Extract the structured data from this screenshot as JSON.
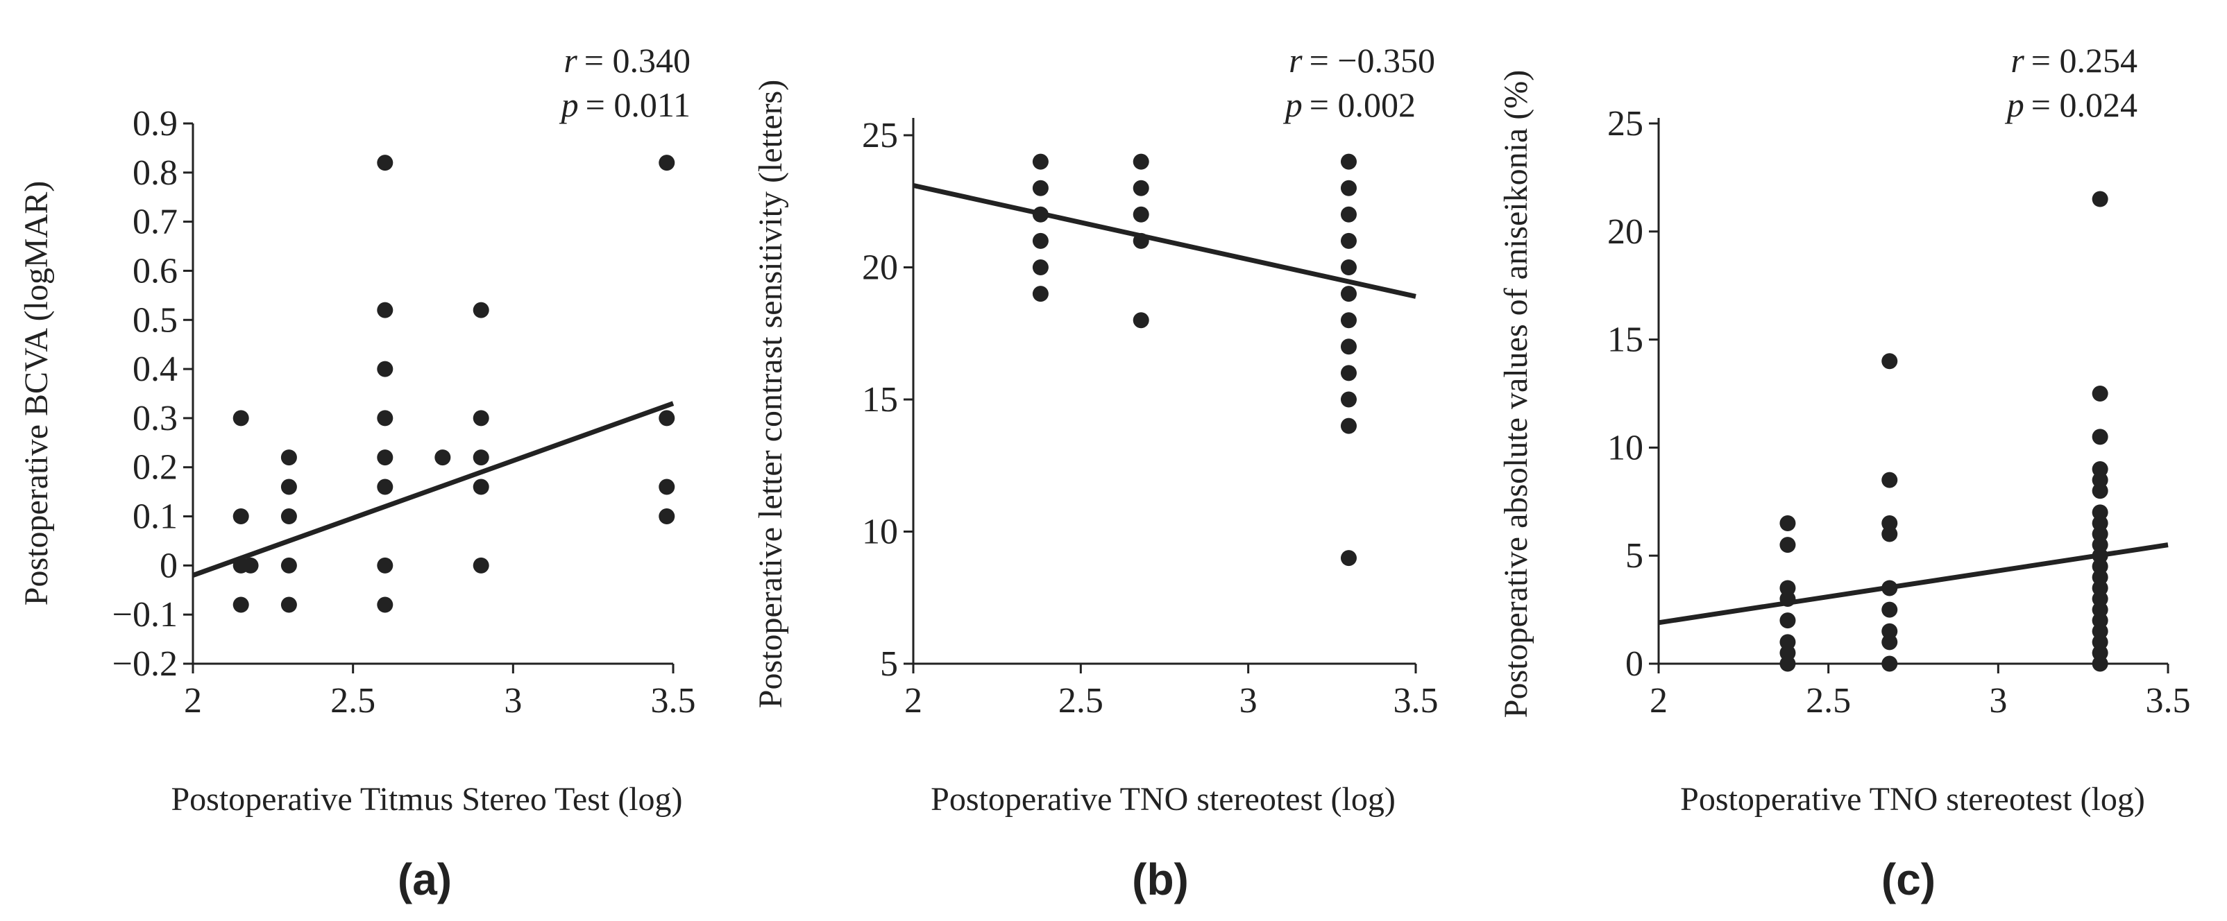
{
  "chart_data": [
    {
      "type": "scatter",
      "panel_label": "(a)",
      "xlabel": "Postoperative Titmus Stereo Test (log)",
      "ylabel": "Postoperative BCVA (logMAR)",
      "xlim": [
        2,
        3.5
      ],
      "ylim": [
        -0.2,
        0.9
      ],
      "xticks": [
        2,
        2.5,
        3,
        3.5
      ],
      "xtick_labels": [
        "2",
        "2.5",
        "3",
        "3.5"
      ],
      "yticks": [
        -0.2,
        -0.1,
        0,
        0.1,
        0.2,
        0.3,
        0.4,
        0.5,
        0.6,
        0.7,
        0.8,
        0.9
      ],
      "ytick_labels": [
        "−0.2",
        "−0.1",
        "0",
        "0.1",
        "0.2",
        "0.3",
        "0.4",
        "0.5",
        "0.6",
        "0.7",
        "0.8",
        "0.9"
      ],
      "r_label": "r",
      "r_value": "= 0.340",
      "p_label": "p",
      "p_value": "= 0.011",
      "trend_line": [
        [
          2,
          -0.02
        ],
        [
          3.5,
          0.33
        ]
      ],
      "points": [
        [
          2.15,
          0.3
        ],
        [
          2.15,
          0.1
        ],
        [
          2.15,
          0
        ],
        [
          2.18,
          0
        ],
        [
          2.15,
          -0.08
        ],
        [
          2.3,
          0.22
        ],
        [
          2.3,
          0.16
        ],
        [
          2.3,
          0.1
        ],
        [
          2.3,
          0
        ],
        [
          2.3,
          -0.08
        ],
        [
          2.6,
          0.82
        ],
        [
          2.6,
          0.52
        ],
        [
          2.6,
          0.4
        ],
        [
          2.6,
          0.3
        ],
        [
          2.6,
          0.22
        ],
        [
          2.6,
          0.16
        ],
        [
          2.6,
          0
        ],
        [
          2.6,
          -0.08
        ],
        [
          2.78,
          0.22
        ],
        [
          2.9,
          0.52
        ],
        [
          2.9,
          0.3
        ],
        [
          2.9,
          0.22
        ],
        [
          2.9,
          0.16
        ],
        [
          2.9,
          0
        ],
        [
          3.48,
          0.82
        ],
        [
          3.48,
          0.3
        ],
        [
          3.48,
          0.16
        ],
        [
          3.48,
          0.1
        ]
      ]
    },
    {
      "type": "scatter",
      "panel_label": "(b)",
      "xlabel": "Postoperative TNO stereotest (log)",
      "ylabel": "Postoperative letter contrast sensitivity (letters)",
      "xlim": [
        2,
        3.5
      ],
      "ylim": [
        5,
        25
      ],
      "xticks": [
        2,
        2.5,
        3,
        3.5
      ],
      "xtick_labels": [
        "2",
        "2.5",
        "3",
        "3.5"
      ],
      "yticks": [
        5,
        10,
        15,
        20,
        25
      ],
      "ytick_labels": [
        "5",
        "10",
        "15",
        "20",
        "25"
      ],
      "r_label": "r",
      "r_value": "= −0.350",
      "p_label": "p",
      "p_value": "= 0.002",
      "trend_line": [
        [
          2,
          23.1
        ],
        [
          3.5,
          18.9
        ]
      ],
      "points": [
        [
          2.38,
          24
        ],
        [
          2.38,
          23
        ],
        [
          2.38,
          22
        ],
        [
          2.38,
          21
        ],
        [
          2.38,
          20
        ],
        [
          2.38,
          19
        ],
        [
          2.68,
          24
        ],
        [
          2.68,
          23
        ],
        [
          2.68,
          22
        ],
        [
          2.68,
          21
        ],
        [
          2.68,
          18
        ],
        [
          3.3,
          24
        ],
        [
          3.3,
          23
        ],
        [
          3.3,
          22
        ],
        [
          3.3,
          21
        ],
        [
          3.3,
          20
        ],
        [
          3.3,
          19
        ],
        [
          3.3,
          18
        ],
        [
          3.3,
          17
        ],
        [
          3.3,
          16
        ],
        [
          3.3,
          15
        ],
        [
          3.3,
          14
        ],
        [
          3.3,
          9
        ]
      ]
    },
    {
      "type": "scatter",
      "panel_label": "(c)",
      "xlabel": "Postoperative TNO stereotest (log)",
      "ylabel": "Postoperative absolute values of aniseikonia (%)",
      "xlim": [
        2,
        3.5
      ],
      "ylim": [
        0,
        25
      ],
      "xticks": [
        2,
        2.5,
        3,
        3.5
      ],
      "xtick_labels": [
        "2",
        "2.5",
        "3",
        "3.5"
      ],
      "yticks": [
        0,
        5,
        10,
        15,
        20,
        25
      ],
      "ytick_labels": [
        "0",
        "5",
        "10",
        "15",
        "20",
        "25"
      ],
      "r_label": "r",
      "r_value": "= 0.254",
      "p_label": "p",
      "p_value": "= 0.024",
      "trend_line": [
        [
          2,
          1.9
        ],
        [
          3.5,
          5.5
        ]
      ],
      "points": [
        [
          2.38,
          6.5
        ],
        [
          2.38,
          5.5
        ],
        [
          2.38,
          3.5
        ],
        [
          2.38,
          3
        ],
        [
          2.38,
          2
        ],
        [
          2.38,
          1
        ],
        [
          2.38,
          0.5
        ],
        [
          2.38,
          0
        ],
        [
          2.68,
          14
        ],
        [
          2.68,
          8.5
        ],
        [
          2.68,
          6.5
        ],
        [
          2.68,
          6
        ],
        [
          2.68,
          3.5
        ],
        [
          2.68,
          2.5
        ],
        [
          2.68,
          1.5
        ],
        [
          2.68,
          1
        ],
        [
          2.68,
          0
        ],
        [
          3.3,
          21.5
        ],
        [
          3.3,
          12.5
        ],
        [
          3.3,
          10.5
        ],
        [
          3.3,
          9
        ],
        [
          3.3,
          8.5
        ],
        [
          3.3,
          8
        ],
        [
          3.3,
          7
        ],
        [
          3.3,
          6.5
        ],
        [
          3.3,
          6
        ],
        [
          3.3,
          5.5
        ],
        [
          3.3,
          5
        ],
        [
          3.3,
          4.5
        ],
        [
          3.3,
          4
        ],
        [
          3.3,
          3.5
        ],
        [
          3.3,
          3
        ],
        [
          3.3,
          2.5
        ],
        [
          3.3,
          2
        ],
        [
          3.3,
          1.5
        ],
        [
          3.3,
          1
        ],
        [
          3.3,
          0.5
        ],
        [
          3.3,
          0
        ]
      ]
    }
  ]
}
